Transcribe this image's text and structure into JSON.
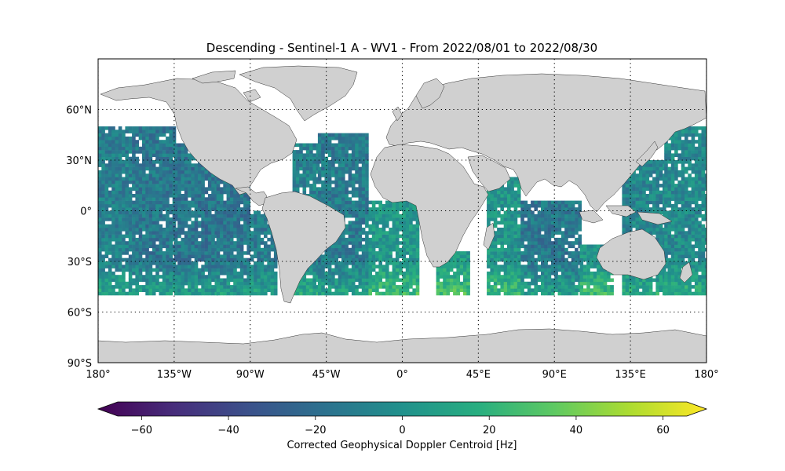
{
  "chart_data": {
    "type": "heatmap",
    "title": "Descending - Sentinel-1 A - WV1 - From 2022/08/01 to 2022/08/30",
    "projection": "plate-carree",
    "lon_range": [
      -180,
      180
    ],
    "lat_range": [
      -90,
      90
    ],
    "gridlines": "dotted",
    "land_color": "#d0d0d0",
    "x_ticks": [
      {
        "lon": -180,
        "label": "180°"
      },
      {
        "lon": -135,
        "label": "135°W"
      },
      {
        "lon": -90,
        "label": "90°W"
      },
      {
        "lon": -45,
        "label": "45°W"
      },
      {
        "lon": 0,
        "label": "0°"
      },
      {
        "lon": 45,
        "label": "45°E"
      },
      {
        "lon": 90,
        "label": "90°E"
      },
      {
        "lon": 135,
        "label": "135°E"
      },
      {
        "lon": 180,
        "label": "180°"
      }
    ],
    "y_ticks": [
      {
        "lat": 60,
        "label": "60°N"
      },
      {
        "lat": 30,
        "label": "30°N"
      },
      {
        "lat": 0,
        "label": "0°"
      },
      {
        "lat": -30,
        "label": "30°S"
      },
      {
        "lat": -60,
        "label": "60°S"
      },
      {
        "lat": -90,
        "label": "90°S"
      }
    ],
    "data_extent": {
      "lat_min": -50,
      "lat_max": 50
    },
    "swaths": [
      {
        "lon_min": -180,
        "lon_max": -160,
        "lat_min": -50,
        "lat_max": 50,
        "mean": -10
      },
      {
        "lon_min": -160,
        "lon_max": -135,
        "lat_min": -50,
        "lat_max": 50,
        "mean": -14
      },
      {
        "lon_min": -135,
        "lon_max": -110,
        "lat_min": -50,
        "lat_max": 40,
        "mean": -16
      },
      {
        "lon_min": -110,
        "lon_max": -90,
        "lat_min": -50,
        "lat_max": 20,
        "mean": -15
      },
      {
        "lon_min": -90,
        "lon_max": -75,
        "lat_min": -50,
        "lat_max": 0,
        "mean": -12
      },
      {
        "lon_min": -65,
        "lon_max": -50,
        "lat_min": -50,
        "lat_max": 40,
        "mean": -8
      },
      {
        "lon_min": -50,
        "lon_max": -20,
        "lat_min": -50,
        "lat_max": 45,
        "mean": -12
      },
      {
        "lon_min": -20,
        "lon_max": 10,
        "lat_min": -50,
        "lat_max": 5,
        "mean": 4
      },
      {
        "lon_min": 20,
        "lon_max": 40,
        "lat_min": -50,
        "lat_max": -25,
        "mean": 6
      },
      {
        "lon_min": 50,
        "lon_max": 70,
        "lat_min": -50,
        "lat_max": 20,
        "mean": 2
      },
      {
        "lon_min": 70,
        "lon_max": 105,
        "lat_min": -50,
        "lat_max": 5,
        "mean": -14
      },
      {
        "lon_min": 105,
        "lon_max": 125,
        "lat_min": -50,
        "lat_max": -20,
        "mean": 2
      },
      {
        "lon_min": 130,
        "lon_max": 155,
        "lat_min": -50,
        "lat_max": 30,
        "mean": -6
      },
      {
        "lon_min": 155,
        "lon_max": 180,
        "lat_min": -50,
        "lat_max": 50,
        "mean": -4
      }
    ],
    "colorbar": {
      "label": "Corrected Geophysical Doppler Centroid [Hz]",
      "colormap": "viridis",
      "range": [
        -70,
        70
      ],
      "extend": "both",
      "ticks": [
        -60,
        -40,
        -20,
        0,
        20,
        40,
        60
      ],
      "tick_labels": [
        "−60",
        "−40",
        "−20",
        "0",
        "20",
        "40",
        "60"
      ]
    }
  }
}
